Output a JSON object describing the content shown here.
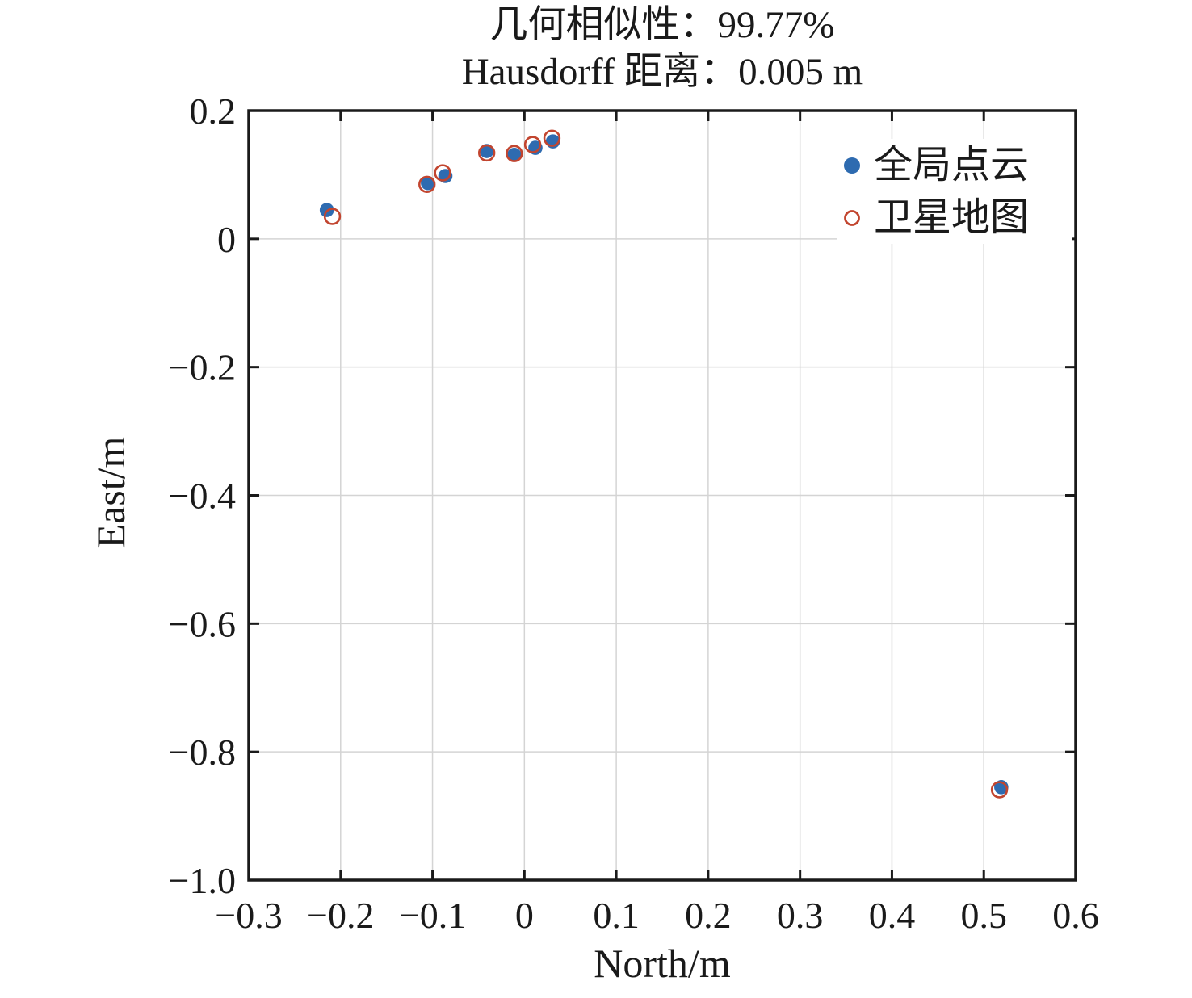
{
  "chart_data": {
    "type": "scatter",
    "title_line1": "几何相似性：99.77%",
    "title_line2": "Hausdorff 距离：0.005 m",
    "annotations": {
      "geometric_similarity": "99.77%",
      "hausdorff_distance": "0.005 m"
    },
    "xlabel": "North/m",
    "ylabel": "East/m",
    "xlim": [
      -0.3,
      0.6
    ],
    "ylim": [
      -1.0,
      0.2
    ],
    "grid": true,
    "x_ticks": {
      "values": [
        -0.3,
        -0.2,
        -0.1,
        0,
        0.1,
        0.2,
        0.3,
        0.4,
        0.5,
        0.6
      ],
      "labels": [
        "−0.3",
        "−0.2",
        "−0.1",
        "0",
        "0.1",
        "0.2",
        "0.3",
        "0.4",
        "0.5",
        "0.6"
      ]
    },
    "y_ticks": {
      "values": [
        0.2,
        0,
        -0.2,
        -0.4,
        -0.6,
        -0.8,
        -1.0
      ],
      "labels": [
        "0.2",
        "0",
        "−0.2",
        "−0.4",
        "−0.6",
        "−0.8",
        "−1.0"
      ]
    },
    "legend": {
      "position": "top-right-inside",
      "frame": false
    },
    "series": [
      {
        "name": "全局点云",
        "marker": "filled-circle",
        "color": "#2e6bb0",
        "points": [
          [
            -0.215,
            0.045
          ],
          [
            -0.105,
            0.087
          ],
          [
            -0.086,
            0.098
          ],
          [
            -0.041,
            0.137
          ],
          [
            -0.011,
            0.131
          ],
          [
            0.012,
            0.142
          ],
          [
            0.031,
            0.152
          ],
          [
            0.519,
            -0.855
          ]
        ]
      },
      {
        "name": "卫星地图",
        "marker": "open-circle",
        "color": "#c2452f",
        "points": [
          [
            -0.209,
            0.035
          ],
          [
            -0.106,
            0.085
          ],
          [
            -0.089,
            0.103
          ],
          [
            -0.041,
            0.134
          ],
          [
            -0.011,
            0.133
          ],
          [
            0.009,
            0.147
          ],
          [
            0.03,
            0.157
          ],
          [
            0.517,
            -0.859
          ]
        ]
      }
    ],
    "colors": {
      "grid": "#d4d4d4",
      "axis": "#1a1a1a",
      "background": "#ffffff"
    }
  }
}
